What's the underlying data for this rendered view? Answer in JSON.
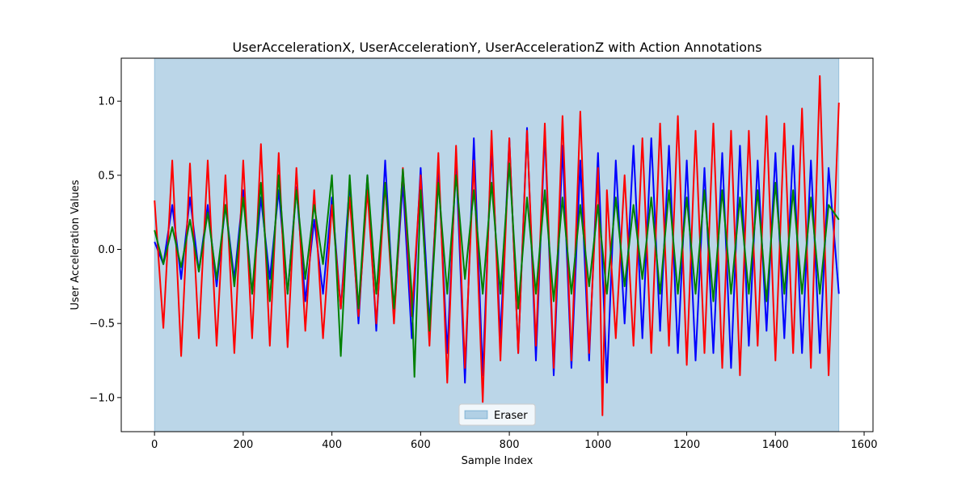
{
  "chart_data": {
    "type": "line",
    "title": "UserAccelerationX, UserAccelerationY, UserAccelerationZ with Action Annotations",
    "xlabel": "Sample Index",
    "ylabel": "User Acceleration Values",
    "xlim": [
      -75,
      1620
    ],
    "ylim": [
      -1.23,
      1.29
    ],
    "xticks": [
      0,
      200,
      400,
      600,
      800,
      1000,
      1200,
      1400,
      1600
    ],
    "xtick_labels": [
      "0",
      "200",
      "400",
      "600",
      "800",
      "1000",
      "1200",
      "1400",
      "1600"
    ],
    "yticks": [
      -1.0,
      -0.5,
      0.0,
      0.5,
      1.0
    ],
    "ytick_labels": [
      "−1.0",
      "−0.5",
      "0.0",
      "0.5",
      "1.0"
    ],
    "grid": false,
    "legend_location": "lower center",
    "annotations": [
      {
        "label": "Eraser",
        "x_start": 0,
        "x_end": 1543,
        "color": "#1f77b4",
        "alpha": 0.3
      }
    ],
    "series": [
      {
        "color": "#0000ff",
        "x": [
          0,
          20,
          40,
          60,
          80,
          100,
          120,
          140,
          160,
          180,
          200,
          220,
          240,
          260,
          280,
          300,
          320,
          340,
          360,
          380,
          400,
          420,
          440,
          460,
          480,
          500,
          520,
          540,
          560,
          580,
          600,
          620,
          640,
          660,
          680,
          700,
          720,
          740,
          760,
          780,
          800,
          820,
          840,
          860,
          880,
          900,
          920,
          940,
          960,
          980,
          1000,
          1020,
          1040,
          1060,
          1080,
          1100,
          1120,
          1140,
          1160,
          1180,
          1200,
          1220,
          1240,
          1260,
          1280,
          1300,
          1320,
          1340,
          1360,
          1380,
          1400,
          1420,
          1440,
          1460,
          1480,
          1500,
          1520,
          1543
        ],
        "y": [
          0.05,
          -0.1,
          0.3,
          -0.2,
          0.35,
          -0.15,
          0.3,
          -0.25,
          0.3,
          -0.2,
          0.4,
          -0.3,
          0.35,
          -0.2,
          0.4,
          -0.3,
          0.42,
          -0.35,
          0.2,
          -0.3,
          0.35,
          -0.4,
          0.45,
          -0.5,
          0.5,
          -0.55,
          0.6,
          -0.45,
          0.45,
          -0.6,
          0.55,
          -0.5,
          0.55,
          -0.7,
          0.6,
          -0.9,
          0.75,
          -0.85,
          0.7,
          -0.6,
          0.75,
          -0.7,
          0.82,
          -0.75,
          0.8,
          -0.85,
          0.7,
          -0.8,
          0.6,
          -0.75,
          0.65,
          -0.9,
          0.6,
          -0.5,
          0.7,
          -0.6,
          0.75,
          -0.55,
          0.7,
          -0.7,
          0.6,
          -0.75,
          0.55,
          -0.7,
          0.65,
          -0.8,
          0.7,
          -0.65,
          0.6,
          -0.55,
          0.65,
          -0.6,
          0.7,
          -0.7,
          0.6,
          -0.7,
          0.55,
          -0.3
        ]
      },
      {
        "color": "#ff0000",
        "x": [
          0,
          20,
          40,
          60,
          80,
          100,
          120,
          140,
          160,
          180,
          200,
          220,
          240,
          260,
          280,
          300,
          320,
          340,
          360,
          380,
          400,
          420,
          440,
          460,
          480,
          500,
          520,
          540,
          560,
          580,
          600,
          620,
          640,
          660,
          680,
          700,
          720,
          740,
          760,
          780,
          800,
          820,
          840,
          860,
          880,
          900,
          920,
          940,
          960,
          980,
          1000,
          1010,
          1020,
          1040,
          1060,
          1080,
          1100,
          1120,
          1140,
          1160,
          1180,
          1200,
          1220,
          1240,
          1260,
          1280,
          1300,
          1320,
          1340,
          1360,
          1380,
          1400,
          1420,
          1440,
          1460,
          1480,
          1500,
          1520,
          1543
        ],
        "y": [
          0.33,
          -0.53,
          0.6,
          -0.72,
          0.58,
          -0.6,
          0.6,
          -0.65,
          0.5,
          -0.7,
          0.6,
          -0.6,
          0.71,
          -0.65,
          0.65,
          -0.66,
          0.55,
          -0.55,
          0.4,
          -0.6,
          0.3,
          -0.4,
          0.35,
          -0.45,
          0.4,
          -0.5,
          0.45,
          -0.5,
          0.55,
          -0.45,
          0.5,
          -0.65,
          0.65,
          -0.9,
          0.7,
          -0.8,
          0.6,
          -1.03,
          0.8,
          -0.75,
          0.75,
          -0.7,
          0.8,
          -0.65,
          0.85,
          -0.8,
          0.9,
          -0.75,
          0.93,
          -0.7,
          0.55,
          -1.12,
          0.4,
          -0.6,
          0.5,
          -0.65,
          0.75,
          -0.7,
          0.85,
          -0.65,
          0.9,
          -0.78,
          0.8,
          -0.7,
          0.85,
          -0.8,
          0.8,
          -0.85,
          0.8,
          -0.65,
          0.9,
          -0.75,
          0.85,
          -0.7,
          0.95,
          -0.8,
          1.17,
          -0.85,
          0.99
        ]
      },
      {
        "color": "#008000",
        "x": [
          0,
          20,
          40,
          60,
          80,
          100,
          120,
          140,
          160,
          180,
          200,
          220,
          240,
          260,
          280,
          300,
          320,
          340,
          360,
          380,
          400,
          420,
          440,
          460,
          480,
          500,
          520,
          540,
          560,
          580,
          586,
          600,
          620,
          640,
          660,
          680,
          700,
          720,
          740,
          760,
          780,
          800,
          820,
          840,
          860,
          880,
          900,
          920,
          940,
          960,
          980,
          1000,
          1020,
          1040,
          1060,
          1080,
          1100,
          1120,
          1140,
          1160,
          1180,
          1200,
          1220,
          1240,
          1260,
          1280,
          1300,
          1320,
          1340,
          1360,
          1380,
          1400,
          1420,
          1440,
          1460,
          1480,
          1500,
          1520,
          1543
        ],
        "y": [
          0.13,
          -0.1,
          0.15,
          -0.12,
          0.2,
          -0.15,
          0.25,
          -0.2,
          0.3,
          -0.25,
          0.35,
          -0.3,
          0.45,
          -0.35,
          0.5,
          -0.3,
          0.4,
          -0.2,
          0.3,
          -0.1,
          0.5,
          -0.72,
          0.5,
          -0.4,
          0.5,
          -0.3,
          0.45,
          -0.4,
          0.54,
          -0.3,
          -0.86,
          0.4,
          -0.55,
          0.45,
          -0.3,
          0.5,
          -0.2,
          0.4,
          -0.3,
          0.45,
          -0.3,
          0.58,
          -0.4,
          0.35,
          -0.3,
          0.4,
          -0.35,
          0.35,
          -0.3,
          0.3,
          -0.25,
          0.3,
          -0.3,
          0.35,
          -0.25,
          0.3,
          -0.2,
          0.35,
          -0.3,
          0.4,
          -0.3,
          0.35,
          -0.3,
          0.4,
          -0.35,
          0.4,
          -0.3,
          0.35,
          -0.3,
          0.4,
          -0.35,
          0.45,
          -0.3,
          0.4,
          -0.3,
          0.35,
          -0.3,
          0.3,
          0.2
        ]
      }
    ]
  }
}
